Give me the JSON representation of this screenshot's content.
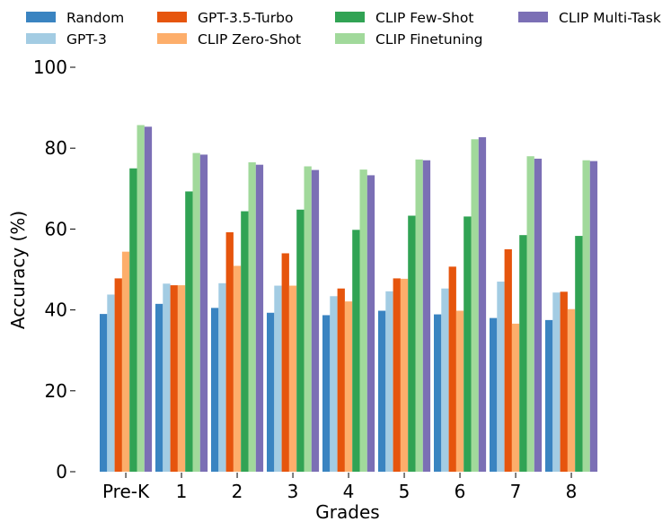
{
  "chart_data": {
    "type": "bar",
    "title": "",
    "xlabel": "Grades",
    "ylabel": "Accuracy (%)",
    "ylim": [
      0,
      100
    ],
    "yticks": [
      0,
      20,
      40,
      60,
      80,
      100
    ],
    "grid": false,
    "legend_position": "top",
    "categories": [
      "Pre-K",
      "1",
      "2",
      "3",
      "4",
      "5",
      "6",
      "7",
      "8"
    ],
    "series": [
      {
        "name": "Random",
        "color": "#3a84c1",
        "values": [
          39.0,
          41.5,
          40.5,
          39.3,
          38.7,
          39.8,
          38.9,
          38.0,
          37.5
        ]
      },
      {
        "name": "GPT-3",
        "color": "#a3cce3",
        "values": [
          43.8,
          46.5,
          46.6,
          46.0,
          43.4,
          44.6,
          45.3,
          47.0,
          44.3
        ]
      },
      {
        "name": "GPT-3.5-Turbo",
        "color": "#e6550d",
        "values": [
          47.8,
          46.1,
          59.2,
          54.0,
          45.3,
          47.8,
          50.7,
          55.0,
          44.5
        ]
      },
      {
        "name": "CLIP Zero-Shot",
        "color": "#fdae6b",
        "values": [
          54.4,
          46.1,
          50.9,
          46.0,
          42.1,
          47.7,
          39.8,
          36.6,
          40.2
        ]
      },
      {
        "name": "CLIP Few-Shot",
        "color": "#31a354",
        "values": [
          75.0,
          69.3,
          64.4,
          64.8,
          59.8,
          63.3,
          63.1,
          58.5,
          58.3
        ]
      },
      {
        "name": "CLIP Finetuning",
        "color": "#a1d99b",
        "values": [
          85.7,
          78.8,
          76.5,
          75.5,
          74.7,
          77.2,
          82.2,
          78.0,
          77.0
        ]
      },
      {
        "name": "CLIP Multi-Task",
        "color": "#7b6fb5",
        "values": [
          85.3,
          78.4,
          75.9,
          74.6,
          73.3,
          77.0,
          82.7,
          77.4,
          76.8
        ]
      }
    ]
  }
}
